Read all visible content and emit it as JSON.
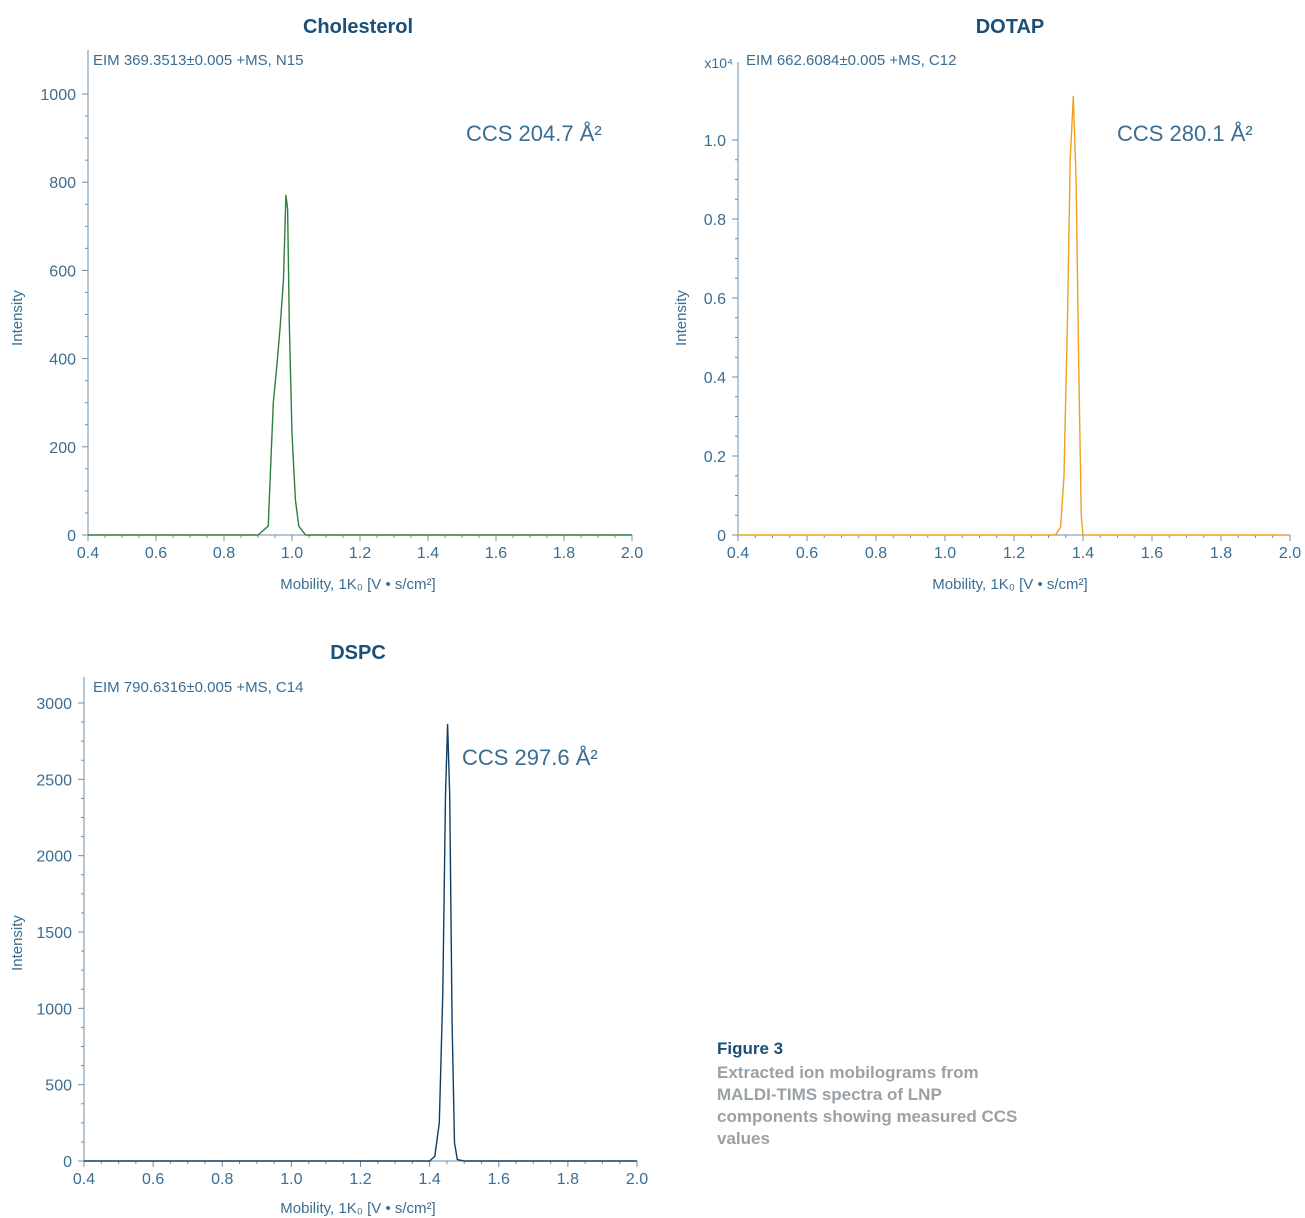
{
  "figure": {
    "number": "Figure 3",
    "caption": "Extracted ion mobilograms from MALDI-TIMS spectra of LNP components showing measured CCS values"
  },
  "chart_data": [
    {
      "type": "line",
      "title": "Cholesterol",
      "trace_label": "EIM 369.3513±0.005 +MS, N15",
      "annotation": "CCS 204.7 Å²",
      "xlabel": "Mobility, 1K₀ [V • s/cm²]",
      "ylabel": "Intensity",
      "exponent_label": "",
      "color": "#2e7d3e",
      "xlim": [
        0.4,
        2.0
      ],
      "ylim": [
        0,
        1000
      ],
      "xticks": [
        "0.4",
        "0.6",
        "0.8",
        "1.0",
        "1.2",
        "1.4",
        "1.6",
        "1.8",
        "2.0"
      ],
      "yticks": [
        "0",
        "200",
        "400",
        "600",
        "800",
        "1000"
      ],
      "yvalues": [
        0,
        200,
        400,
        600,
        800,
        1000
      ],
      "series": [
        {
          "x": [
            0.4,
            0.9,
            0.93,
            0.945,
            0.955,
            0.965,
            0.975,
            0.982,
            0.987,
            0.992,
            1.0,
            1.01,
            1.02,
            1.04,
            1.1,
            2.0
          ],
          "y": [
            0,
            0,
            20,
            300,
            380,
            470,
            580,
            770,
            740,
            480,
            230,
            80,
            20,
            0,
            0,
            0
          ]
        }
      ]
    },
    {
      "type": "line",
      "title": "DOTAP",
      "trace_label": "EIM 662.6084±0.005 +MS, C12",
      "annotation": "CCS 280.1 Å²",
      "xlabel": "Mobility, 1K₀ [V • s/cm²]",
      "ylabel": "Intensity",
      "exponent_label": "x10⁴",
      "color": "#f0a020",
      "xlim": [
        0.4,
        2.0
      ],
      "ylim": [
        0,
        1.0
      ],
      "xticks": [
        "0.4",
        "0.6",
        "0.8",
        "1.0",
        "1.2",
        "1.4",
        "1.6",
        "1.8",
        "2.0"
      ],
      "yticks": [
        "0",
        "0.2",
        "0.4",
        "0.6",
        "0.8",
        "1.0"
      ],
      "yvalues": [
        0,
        0.2,
        0.4,
        0.6,
        0.8,
        1.0
      ],
      "series": [
        {
          "x": [
            0.4,
            1.32,
            1.335,
            1.345,
            1.355,
            1.363,
            1.372,
            1.38,
            1.388,
            1.395,
            1.4,
            1.45,
            1.99
          ],
          "y": [
            0,
            0,
            0.02,
            0.15,
            0.55,
            0.95,
            1.11,
            0.9,
            0.4,
            0.05,
            0,
            0,
            0
          ]
        }
      ]
    },
    {
      "type": "line",
      "title": "DSPC",
      "trace_label": "EIM 790.6316±0.005 +MS, C14",
      "annotation": "CCS 297.6 Å²",
      "xlabel": "Mobility, 1K₀ [V • s/cm²]",
      "ylabel": "Intensity",
      "exponent_label": "",
      "color": "#0d3d66",
      "xlim": [
        0.4,
        2.0
      ],
      "ylim": [
        0,
        3000
      ],
      "xticks": [
        "0.4",
        "0.6",
        "0.8",
        "1.0",
        "1.2",
        "1.4",
        "1.6",
        "1.8",
        "2.0"
      ],
      "yticks": [
        "0",
        "500",
        "1000",
        "1500",
        "2000",
        "2500",
        "3000"
      ],
      "yvalues": [
        0,
        500,
        1000,
        1500,
        2000,
        2500,
        3000
      ],
      "series": [
        {
          "x": [
            0.4,
            1.4,
            1.415,
            1.428,
            1.438,
            1.446,
            1.452,
            1.458,
            1.465,
            1.472,
            1.48,
            1.5,
            2.0
          ],
          "y": [
            0,
            0,
            30,
            250,
            1100,
            2400,
            2860,
            2400,
            900,
            120,
            10,
            0,
            0
          ]
        }
      ]
    }
  ]
}
